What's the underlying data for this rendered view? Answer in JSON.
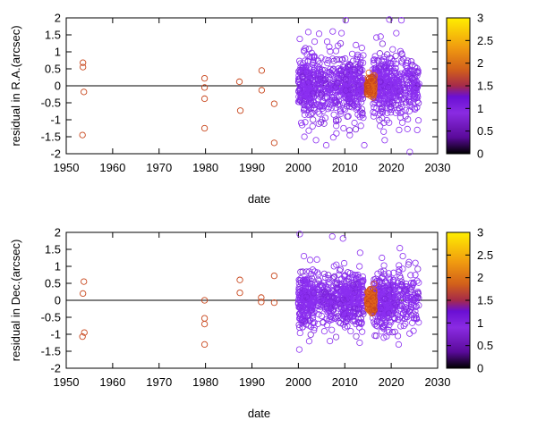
{
  "chart_data": [
    {
      "type": "scatter",
      "title": "",
      "xlabel": "date",
      "ylabel": "residual in R.A.(arcsec)",
      "xlim": [
        1950,
        2030
      ],
      "ylim": [
        -2,
        2
      ],
      "x_ticks": [
        "1950",
        "1960",
        "1970",
        "1980",
        "1990",
        "2000",
        "2010",
        "2020",
        "2030"
      ],
      "y_ticks": [
        "-2",
        "-1.5",
        "-1",
        "-0.5",
        "0",
        "0.5",
        "1",
        "1.5",
        "2"
      ],
      "zero_line": 0,
      "marker": "open-circle",
      "colorbar": {
        "range": [
          0,
          3
        ],
        "ticks": [
          "0",
          "0.5",
          "1",
          "1.5",
          "2",
          "2.5",
          "3"
        ]
      },
      "early_points": [
        {
          "x": 1953.6,
          "y": 0.68,
          "c": 1.8
        },
        {
          "x": 1953.6,
          "y": 0.55,
          "c": 1.8
        },
        {
          "x": 1953.8,
          "y": -0.18,
          "c": 1.8
        },
        {
          "x": 1953.5,
          "y": -1.45,
          "c": 1.8
        },
        {
          "x": 1979.8,
          "y": 0.22,
          "c": 1.8
        },
        {
          "x": 1979.8,
          "y": -0.05,
          "c": 1.8
        },
        {
          "x": 1979.8,
          "y": -0.38,
          "c": 1.8
        },
        {
          "x": 1979.8,
          "y": -1.25,
          "c": 1.8
        },
        {
          "x": 1987.3,
          "y": 0.12,
          "c": 1.8
        },
        {
          "x": 1987.5,
          "y": -0.73,
          "c": 1.8
        },
        {
          "x": 1992.1,
          "y": 0.45,
          "c": 1.8
        },
        {
          "x": 1992.1,
          "y": -0.13,
          "c": 1.8
        },
        {
          "x": 1994.8,
          "y": -0.53,
          "c": 1.8
        },
        {
          "x": 1994.8,
          "y": -1.68,
          "c": 1.8
        }
      ],
      "dense_spread": 0.45,
      "dense_points_count": 1100,
      "cluster_centers": [
        {
          "x": 2000.5,
          "y": 0,
          "c": 1.0
        },
        {
          "x": 2015.5,
          "y": -0.05,
          "c": 1.6
        }
      ],
      "outliers": [
        {
          "x": 2000.3,
          "y": 1.38
        },
        {
          "x": 2001.2,
          "y": 1.05
        },
        {
          "x": 2003.5,
          "y": 1.3
        },
        {
          "x": 2006.2,
          "y": 1.3
        },
        {
          "x": 2007.4,
          "y": 1.6
        },
        {
          "x": 2009.3,
          "y": 1.55
        },
        {
          "x": 2010.2,
          "y": 1.93
        },
        {
          "x": 2012.4,
          "y": 1.2
        },
        {
          "x": 2019.6,
          "y": 1.95
        },
        {
          "x": 2022.2,
          "y": 1.93
        },
        {
          "x": 2017.7,
          "y": 1.45
        },
        {
          "x": 2021.1,
          "y": 1.55
        },
        {
          "x": 2001.3,
          "y": -1.5
        },
        {
          "x": 2003.8,
          "y": -1.6
        },
        {
          "x": 2008.2,
          "y": -1.4
        },
        {
          "x": 2014.2,
          "y": -1.75
        },
        {
          "x": 2018.6,
          "y": -1.6
        },
        {
          "x": 2021.7,
          "y": -1.3
        },
        {
          "x": 2024.0,
          "y": -1.95
        },
        {
          "x": 2025.6,
          "y": -1.3
        },
        {
          "x": 2006.0,
          "y": -1.75
        }
      ]
    },
    {
      "type": "scatter",
      "title": "",
      "xlabel": "date",
      "ylabel": "residual in Dec.(arcsec)",
      "xlim": [
        1950,
        2030
      ],
      "ylim": [
        -2,
        2
      ],
      "x_ticks": [
        "1950",
        "1960",
        "1970",
        "1980",
        "1990",
        "2000",
        "2010",
        "2020",
        "2030"
      ],
      "y_ticks": [
        "-2",
        "-1.5",
        "-1",
        "-0.5",
        "0",
        "0.5",
        "1",
        "1.5",
        "2"
      ],
      "zero_line": 0,
      "marker": "open-circle",
      "colorbar": {
        "range": [
          0,
          3
        ],
        "ticks": [
          "0",
          "0.5",
          "1",
          "1.5",
          "2",
          "2.5",
          "3"
        ]
      },
      "early_points": [
        {
          "x": 1953.8,
          "y": 0.55,
          "c": 1.8
        },
        {
          "x": 1953.6,
          "y": 0.2,
          "c": 1.8
        },
        {
          "x": 1953.9,
          "y": -0.95,
          "c": 1.8
        },
        {
          "x": 1953.5,
          "y": -1.07,
          "c": 1.8
        },
        {
          "x": 1979.8,
          "y": 0.0,
          "c": 1.8
        },
        {
          "x": 1979.8,
          "y": -0.53,
          "c": 1.8
        },
        {
          "x": 1979.8,
          "y": -0.7,
          "c": 1.8
        },
        {
          "x": 1979.8,
          "y": -1.3,
          "c": 1.8
        },
        {
          "x": 1987.4,
          "y": 0.6,
          "c": 1.8
        },
        {
          "x": 1987.4,
          "y": 0.22,
          "c": 1.8
        },
        {
          "x": 1992.0,
          "y": 0.08,
          "c": 1.8
        },
        {
          "x": 1992.0,
          "y": -0.05,
          "c": 1.8
        },
        {
          "x": 1994.8,
          "y": 0.72,
          "c": 1.8
        },
        {
          "x": 1994.8,
          "y": -0.07,
          "c": 1.8
        }
      ],
      "dense_spread": 0.4,
      "dense_points_count": 1100,
      "cluster_centers": [
        {
          "x": 2000.5,
          "y": 0,
          "c": 1.0
        },
        {
          "x": 2015.5,
          "y": -0.05,
          "c": 1.6
        }
      ],
      "outliers": [
        {
          "x": 2000.3,
          "y": 1.95
        },
        {
          "x": 2007.3,
          "y": 1.88
        },
        {
          "x": 2009.6,
          "y": 1.82
        },
        {
          "x": 2001.2,
          "y": 1.3
        },
        {
          "x": 2004.0,
          "y": 1.2
        },
        {
          "x": 2013.3,
          "y": 1.4
        },
        {
          "x": 2018.0,
          "y": 1.25
        },
        {
          "x": 2022.5,
          "y": 1.3
        },
        {
          "x": 2025.2,
          "y": 1.1
        },
        {
          "x": 2000.2,
          "y": -1.45
        },
        {
          "x": 2006.8,
          "y": -1.2
        },
        {
          "x": 2013.2,
          "y": -1.25
        },
        {
          "x": 2018.4,
          "y": -1.1
        },
        {
          "x": 2021.6,
          "y": -1.3
        },
        {
          "x": 2024.8,
          "y": -0.9
        }
      ]
    }
  ]
}
